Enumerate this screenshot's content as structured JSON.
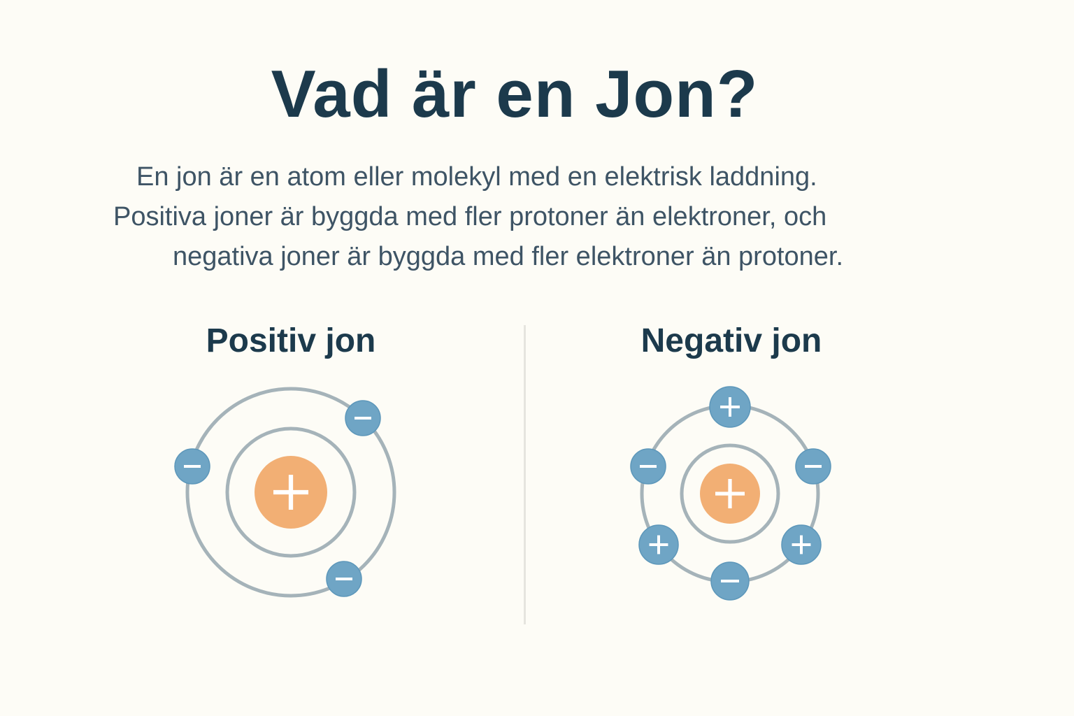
{
  "title": "Vad är en Jon?",
  "description": [
    "En jon är en atom eller molekyl med en elektrisk laddning.",
    "Positiva joner är byggda med fler protoner än elektroner, och",
    "negativa joner är byggda med fler elektroner än protoner."
  ],
  "positive_ion": {
    "label": "Positiv jon",
    "nucleus_charge": "+",
    "particles": [
      "-",
      "-",
      "-"
    ]
  },
  "negative_ion": {
    "label": "Negativ jon",
    "nucleus_charge": "+",
    "particles": [
      "+",
      "-",
      "-",
      "+",
      "-",
      "+"
    ]
  },
  "colors": {
    "nucleus": "#f2af74",
    "particle": "#6fa5c5",
    "orbit": "#a5b3b9",
    "title": "#1c3a4c"
  }
}
